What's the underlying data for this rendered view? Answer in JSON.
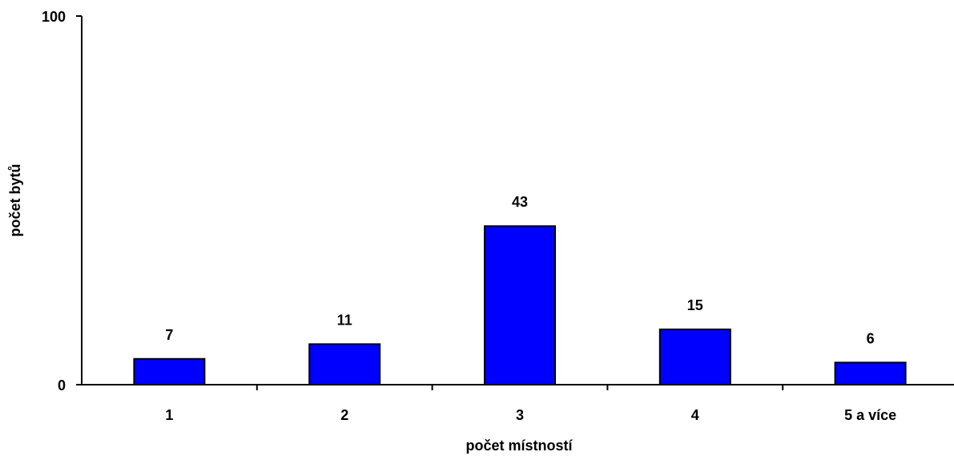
{
  "chart_data": {
    "type": "bar",
    "title": "",
    "xlabel": "počet místností",
    "ylabel": "počet  bytů",
    "categories": [
      "1",
      "2",
      "3",
      "4",
      "5 a více"
    ],
    "values": [
      7,
      11,
      43,
      15,
      6
    ],
    "ylim": [
      0,
      100
    ],
    "yticks": [
      "0",
      "100"
    ],
    "grid": false,
    "legend": "none",
    "bar_color": "#0000FF",
    "bar_stroke_color": "#000000"
  }
}
